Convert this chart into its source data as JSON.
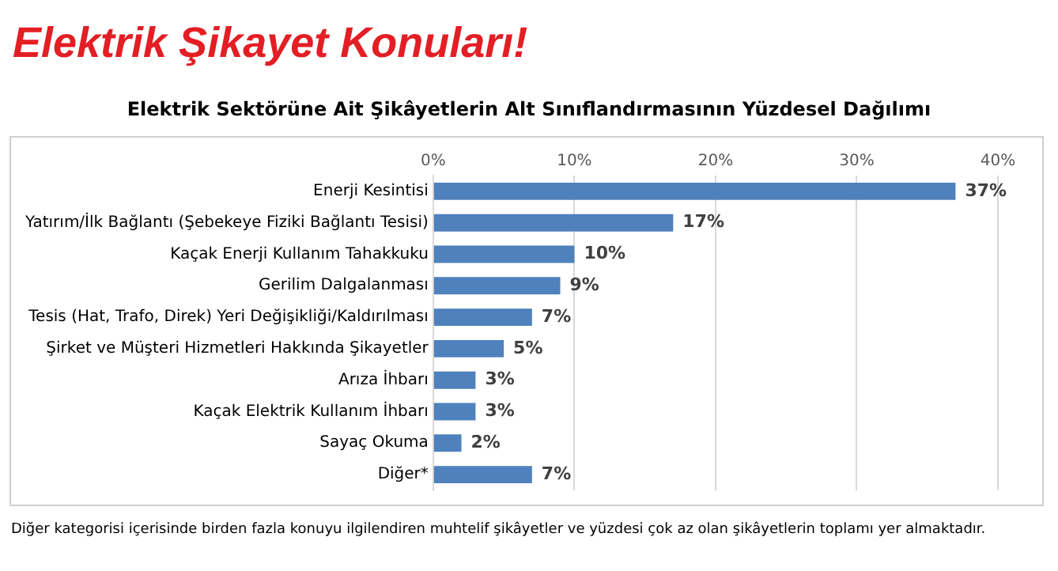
{
  "chart_data": {
    "type": "bar",
    "orientation": "horizontal",
    "title": "Elektrik Şikayet Konuları!",
    "subtitle": "Elektrik Sektörüne Ait Şikâyetlerin Alt Sınıflandırmasının Yüzdesel Dağılımı",
    "categories": [
      "Enerji Kesintisi",
      "Yatırım/İlk Bağlantı (Şebekeye Fiziki Bağlantı Tesisi)",
      "Kaçak Enerji Kullanım Tahakkuku",
      "Gerilim Dalgalanması",
      "Tesis (Hat, Trafo, Direk) Yeri Değişikliği/Kaldırılması",
      "Şirket ve Müşteri Hizmetleri Hakkında Şikayetler",
      "Arıza İhbarı",
      "Kaçak Elektrik Kullanım İhbarı",
      "Sayaç Okuma",
      "Diğer*"
    ],
    "values": [
      37,
      17,
      10,
      9,
      7,
      5,
      3,
      3,
      2,
      7
    ],
    "value_labels": [
      "37%",
      "17%",
      "10%",
      "9%",
      "7%",
      "5%",
      "3%",
      "3%",
      "2%",
      "7%"
    ],
    "color": "#4f81bd",
    "xlim": [
      0,
      40
    ],
    "xticks": [
      {
        "value": 0,
        "label": "0%"
      },
      {
        "value": 10,
        "label": "10%"
      },
      {
        "value": 20,
        "label": "20%"
      },
      {
        "value": 30,
        "label": "30%"
      },
      {
        "value": 40,
        "label": "40%"
      }
    ],
    "grid": "x",
    "legend": false,
    "annotations": [
      "Diğer kategorisi içerisinde birden fazla konuyu ilgilendiren muhtelif şikâyetler ve yüzdesi çok az olan şikâyetlerin toplamı yer almaktadır."
    ]
  }
}
